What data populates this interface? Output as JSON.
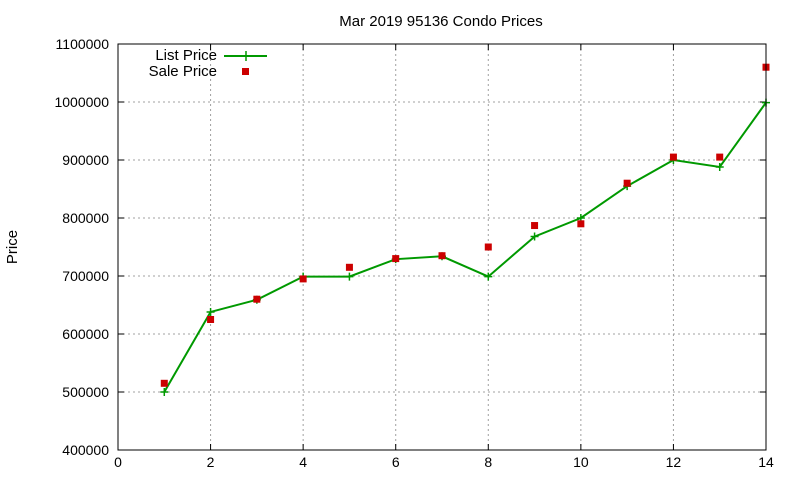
{
  "chart_data": {
    "type": "line",
    "title": "Mar 2019 95136 Condo Prices",
    "xlabel": "",
    "ylabel": "Price",
    "xlim": [
      0,
      14
    ],
    "ylim": [
      400000,
      1100000
    ],
    "x_ticks": [
      0,
      2,
      4,
      6,
      8,
      10,
      12,
      14
    ],
    "y_ticks": [
      400000,
      500000,
      600000,
      700000,
      800000,
      900000,
      1000000,
      1100000
    ],
    "grid": true,
    "legend_position": "top-left",
    "series": [
      {
        "name": "List Price",
        "style": "line-plus",
        "color": "#009900",
        "x": [
          1,
          2,
          3,
          4,
          5,
          6,
          7,
          8,
          9,
          10,
          11,
          12,
          13,
          14
        ],
        "y": [
          500000,
          638000,
          659000,
          699000,
          699000,
          729000,
          734000,
          699000,
          768000,
          800000,
          855000,
          900000,
          888000,
          999000
        ]
      },
      {
        "name": "Sale Price",
        "style": "square-points",
        "color": "#cc0000",
        "x": [
          1,
          2,
          3,
          4,
          5,
          6,
          7,
          8,
          9,
          10,
          11,
          12,
          13,
          14
        ],
        "y": [
          515000,
          625000,
          660000,
          695000,
          715000,
          730000,
          735000,
          750000,
          787000,
          790000,
          860000,
          905000,
          905000,
          1060000
        ]
      }
    ]
  }
}
